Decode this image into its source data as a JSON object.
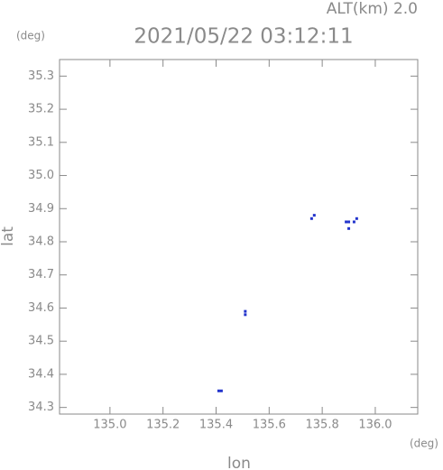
{
  "chart_data": {
    "type": "scatter",
    "title": "2021/05/22 03:12:11",
    "annotations": [
      "ALT(km) 2.0",
      "(deg)",
      "(deg)"
    ],
    "xlabel": "lon",
    "ylabel": "lat",
    "color": "#2233cc",
    "x": [
      135.77,
      135.76,
      135.89,
      135.9,
      135.9,
      135.92,
      135.93,
      135.51,
      135.51,
      135.41,
      135.42
    ],
    "values": [
      34.88,
      34.87,
      34.86,
      34.86,
      34.84,
      34.86,
      34.87,
      34.59,
      34.58,
      34.35,
      34.35
    ],
    "xlim": [
      134.81,
      136.16
    ],
    "ylim": [
      34.28,
      35.35
    ],
    "xticks": [
      {
        "value": 135.0,
        "label": "135.0"
      },
      135.2,
      135.4,
      135.6,
      135.8,
      {
        "value": 136.0,
        "label": "136.0"
      }
    ],
    "yticks": [
      34.3,
      34.4,
      34.5,
      34.6,
      34.7,
      34.8,
      34.9,
      {
        "value": 35.0,
        "label": "35.0"
      },
      35.1,
      35.2,
      35.3
    ]
  }
}
